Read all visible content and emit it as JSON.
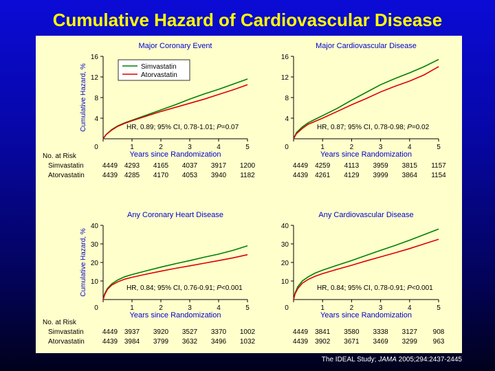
{
  "title": "Cumulative Hazard of Cardiovascular Disease",
  "citation": {
    "prefix": "The IDEAL Study; ",
    "journal": "JAMA",
    "suffix": " 2005;294:2437-2445"
  },
  "legend": [
    "Simvastatin",
    "Atorvastatin"
  ],
  "colors": {
    "simvastatin": "#008000",
    "atorvastatin": "#dd0000",
    "axis_text": "#0000cc"
  },
  "ylabel": "Cumulative Hazard, %",
  "xlabel": "Years since Randomization",
  "risk_header": "No. at Risk",
  "chart_data": [
    {
      "type": "line",
      "title": "Major Coronary Event",
      "xlabel": "Years since Randomization",
      "ylabel": "Cumulative Hazard, %",
      "xlim": [
        0,
        5
      ],
      "ylim": [
        0,
        16
      ],
      "xticks": [
        0,
        1,
        2,
        3,
        4,
        5
      ],
      "yticks": [
        0,
        4,
        8,
        12,
        16
      ],
      "legend": "top-left",
      "hr_text": [
        "HR, 0.89; 95% CI, 0.78-1.01; ",
        "P",
        "=0.07"
      ],
      "series": [
        {
          "name": "Simvastatin",
          "color": "#008000",
          "x": [
            0,
            0.1,
            0.3,
            0.5,
            0.75,
            1,
            1.5,
            2,
            2.5,
            3,
            3.5,
            4,
            4.5,
            5
          ],
          "y": [
            0,
            0.8,
            1.8,
            2.5,
            3.1,
            3.6,
            4.6,
            5.6,
            6.6,
            7.7,
            8.7,
            9.6,
            10.6,
            11.6
          ]
        },
        {
          "name": "Atorvastatin",
          "color": "#dd0000",
          "x": [
            0,
            0.1,
            0.3,
            0.5,
            0.75,
            1,
            1.5,
            2,
            2.5,
            3,
            3.5,
            4,
            4.5,
            5
          ],
          "y": [
            0,
            0.8,
            1.7,
            2.4,
            3.0,
            3.5,
            4.4,
            5.3,
            6.1,
            6.9,
            7.7,
            8.6,
            9.5,
            10.5
          ]
        }
      ],
      "risk": {
        "Simvastatin": [
          "4449",
          "4293",
          "4165",
          "4037",
          "3917",
          "1200"
        ],
        "Atorvastatin": [
          "4439",
          "4285",
          "4170",
          "4053",
          "3940",
          "1182"
        ]
      }
    },
    {
      "type": "line",
      "title": "Major Cardiovascular Disease",
      "xlabel": "Years since Randomization",
      "ylabel": "",
      "xlim": [
        0,
        5
      ],
      "ylim": [
        0,
        16
      ],
      "xticks": [
        0,
        1,
        2,
        3,
        4,
        5
      ],
      "yticks": [
        0,
        4,
        8,
        12,
        16
      ],
      "hr_text": [
        "HR, 0.87; 95% CI, 0.78-0.98; ",
        "P",
        "=0.02"
      ],
      "series": [
        {
          "name": "Simvastatin",
          "color": "#008000",
          "x": [
            0,
            0.1,
            0.3,
            0.5,
            0.75,
            1,
            1.5,
            2,
            2.5,
            3,
            3.5,
            4,
            4.5,
            5
          ],
          "y": [
            0,
            1.2,
            2.3,
            3.1,
            3.8,
            4.5,
            5.9,
            7.5,
            9.0,
            10.5,
            11.7,
            12.8,
            14.0,
            15.4
          ]
        },
        {
          "name": "Atorvastatin",
          "color": "#dd0000",
          "x": [
            0,
            0.1,
            0.3,
            0.5,
            0.75,
            1,
            1.5,
            2,
            2.5,
            3,
            3.5,
            4,
            4.5,
            5
          ],
          "y": [
            0,
            1.0,
            2.0,
            2.8,
            3.4,
            4.0,
            5.3,
            6.6,
            7.8,
            9.1,
            10.2,
            11.2,
            12.4,
            14.0
          ]
        }
      ],
      "risk": {
        "Simvastatin": [
          "4449",
          "4259",
          "4113",
          "3959",
          "3815",
          "1157"
        ],
        "Atorvastatin": [
          "4439",
          "4261",
          "4129",
          "3999",
          "3864",
          "1154"
        ]
      }
    },
    {
      "type": "line",
      "title": "Any Coronary Heart Disease",
      "xlabel": "Years since Randomization",
      "ylabel": "Cumulative Hazard, %",
      "xlim": [
        0,
        5
      ],
      "ylim": [
        0,
        40
      ],
      "xticks": [
        0,
        1,
        2,
        3,
        4,
        5
      ],
      "yticks": [
        0,
        10,
        20,
        30,
        40
      ],
      "hr_text": [
        "HR, 0.84; 95% CI, 0.76-0.91; ",
        "P",
        "<0.001"
      ],
      "series": [
        {
          "name": "Simvastatin",
          "color": "#008000",
          "x": [
            0,
            0.05,
            0.15,
            0.3,
            0.5,
            0.75,
            1,
            1.5,
            2,
            2.5,
            3,
            3.5,
            4,
            4.5,
            5
          ],
          "y": [
            0,
            3,
            6,
            8.5,
            10.5,
            12.3,
            13.5,
            15.5,
            17.5,
            19.3,
            21.0,
            22.8,
            24.5,
            26.5,
            29.0
          ]
        },
        {
          "name": "Atorvastatin",
          "color": "#dd0000",
          "x": [
            0,
            0.05,
            0.15,
            0.3,
            0.5,
            0.75,
            1,
            1.5,
            2,
            2.5,
            3,
            3.5,
            4,
            4.5,
            5
          ],
          "y": [
            0,
            2.5,
            5.5,
            7.8,
            9.5,
            11.0,
            12.0,
            13.7,
            15.3,
            16.8,
            18.2,
            19.6,
            21.0,
            22.5,
            24.2
          ]
        }
      ],
      "risk": {
        "Simvastatin": [
          "4449",
          "3937",
          "3920",
          "3527",
          "3370",
          "1002"
        ],
        "Atorvastatin": [
          "4439",
          "3984",
          "3799",
          "3632",
          "3496",
          "1032"
        ]
      }
    },
    {
      "type": "line",
      "title": "Any Cardiovascular Disease",
      "xlabel": "Years since Randomization",
      "ylabel": "",
      "xlim": [
        0,
        5
      ],
      "ylim": [
        0,
        40
      ],
      "xticks": [
        0,
        1,
        2,
        3,
        4,
        5
      ],
      "yticks": [
        0,
        10,
        20,
        30,
        40
      ],
      "hr_text": [
        "HR, 0.84; 95% CI, 0.78-0.91; ",
        "P",
        "<0.001"
      ],
      "series": [
        {
          "name": "Simvastatin",
          "color": "#008000",
          "x": [
            0,
            0.05,
            0.15,
            0.3,
            0.5,
            0.75,
            1,
            1.5,
            2,
            2.5,
            3,
            3.5,
            4,
            4.5,
            5
          ],
          "y": [
            0,
            3.5,
            7,
            10,
            12.2,
            14.3,
            15.8,
            18.5,
            21.0,
            23.8,
            26.5,
            29.2,
            32.0,
            35.0,
            38.0
          ]
        },
        {
          "name": "Atorvastatin",
          "color": "#dd0000",
          "x": [
            0,
            0.05,
            0.15,
            0.3,
            0.5,
            0.75,
            1,
            1.5,
            2,
            2.5,
            3,
            3.5,
            4,
            4.5,
            5
          ],
          "y": [
            0,
            3,
            6,
            8.8,
            10.8,
            12.6,
            14.0,
            16.3,
            18.5,
            20.8,
            23.0,
            25.2,
            27.5,
            30.0,
            32.5
          ]
        }
      ],
      "risk": {
        "Simvastatin": [
          "4449",
          "3841",
          "3580",
          "3338",
          "3127",
          "908"
        ],
        "Atorvastatin": [
          "4439",
          "3902",
          "3671",
          "3469",
          "3299",
          "963"
        ]
      }
    }
  ]
}
